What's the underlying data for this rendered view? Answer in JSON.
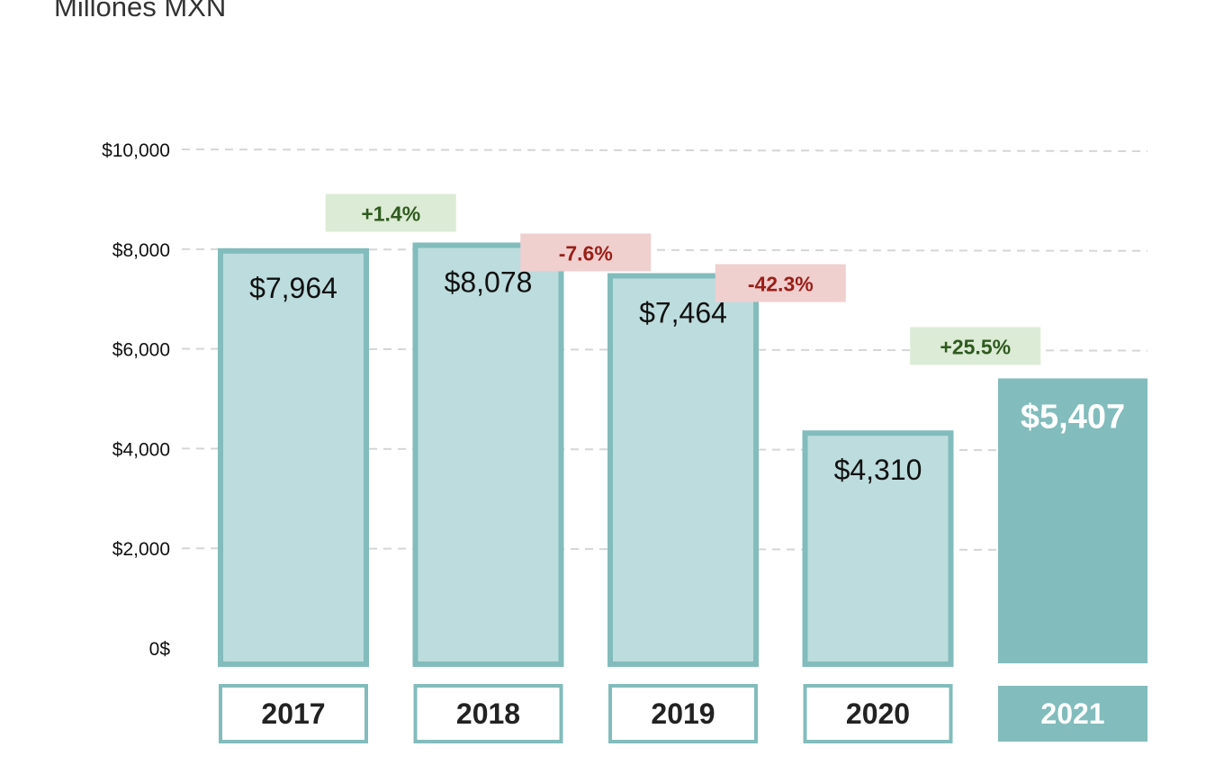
{
  "subtitle": "Millones MXN",
  "colors": {
    "bar_fill": "#bddcdd",
    "bar_border": "#82bcbc",
    "highlight_fill": "#82bcbc",
    "positive_bg": "#dcebd5",
    "positive_text": "#2f5a1f",
    "negative_bg": "#f0cfcf",
    "negative_text": "#9a1f17",
    "grid": "#d6d6d6"
  },
  "chart_data": {
    "type": "bar",
    "categories": [
      "2017",
      "2018",
      "2019",
      "2020",
      "2021"
    ],
    "values": [
      7964,
      8078,
      7464,
      4310,
      5407
    ],
    "value_labels": [
      "$7,964",
      "$8,078",
      "$7,464",
      "$4,310",
      "$5,407"
    ],
    "highlight_category": "2021",
    "changes": [
      {
        "label": "+1.4%",
        "sign": "positive",
        "between": [
          "2017",
          "2018"
        ]
      },
      {
        "label": "-7.6%",
        "sign": "negative",
        "between": [
          "2018",
          "2019"
        ]
      },
      {
        "label": "-42.3%",
        "sign": "negative",
        "between": [
          "2019",
          "2020"
        ]
      },
      {
        "label": "+25.5%",
        "sign": "positive",
        "between": [
          "2020",
          "2021"
        ]
      }
    ],
    "yticks": [
      {
        "value": 10000,
        "label": "$10,000"
      },
      {
        "value": 8000,
        "label": "$8,000"
      },
      {
        "value": 6000,
        "label": "$6,000"
      },
      {
        "value": 4000,
        "label": "$4,000"
      },
      {
        "value": 2000,
        "label": "$2,000"
      },
      {
        "value": 0,
        "label": "0$"
      }
    ],
    "ylim": [
      0,
      10000
    ],
    "grid": true,
    "ylabel": "Millones MXN",
    "xlabel": ""
  }
}
